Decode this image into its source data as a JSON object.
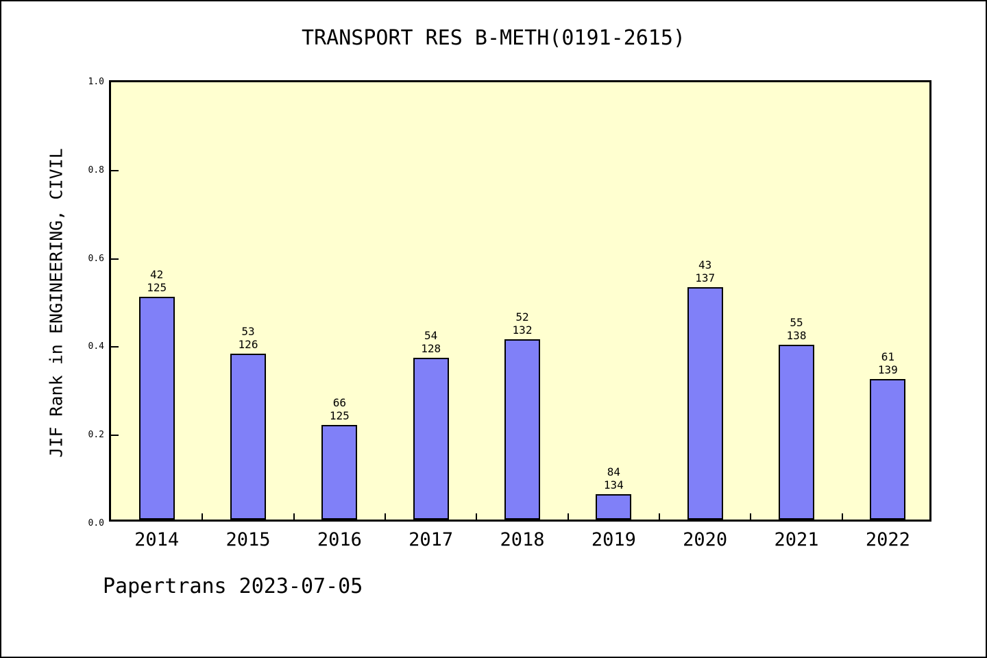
{
  "title": "TRANSPORT RES B-METH(0191-2615)",
  "footer": "Papertrans 2023-07-05",
  "colors": {
    "page_background": "#ffffff",
    "plot_background": "#ffffd0",
    "bar_fill": "#8080f8",
    "bar_border": "#000000",
    "axis": "#000000",
    "text": "#000000"
  },
  "chart_data": {
    "type": "bar",
    "title": "TRANSPORT RES B-METH(0191-2615)",
    "xlabel": "",
    "ylabel": "JIF Rank in ENGINEERING, CIVIL",
    "ylim": [
      0.0,
      1.0
    ],
    "yticks": [
      0.0,
      0.2,
      0.4,
      0.6,
      0.8,
      1.0
    ],
    "grid": false,
    "legend_position": "none",
    "categories": [
      "2014",
      "2015",
      "2016",
      "2017",
      "2018",
      "2019",
      "2020",
      "2021",
      "2022"
    ],
    "values": [
      0.505,
      0.376,
      0.215,
      0.366,
      0.408,
      0.057,
      0.526,
      0.396,
      0.318
    ],
    "annotations": [
      {
        "rank": "42",
        "total": "125"
      },
      {
        "rank": "53",
        "total": "126"
      },
      {
        "rank": "66",
        "total": "125"
      },
      {
        "rank": "54",
        "total": "128"
      },
      {
        "rank": "52",
        "total": "132"
      },
      {
        "rank": "84",
        "total": "134"
      },
      {
        "rank": "43",
        "total": "137"
      },
      {
        "rank": "55",
        "total": "138"
      },
      {
        "rank": "61",
        "total": "139"
      }
    ]
  }
}
